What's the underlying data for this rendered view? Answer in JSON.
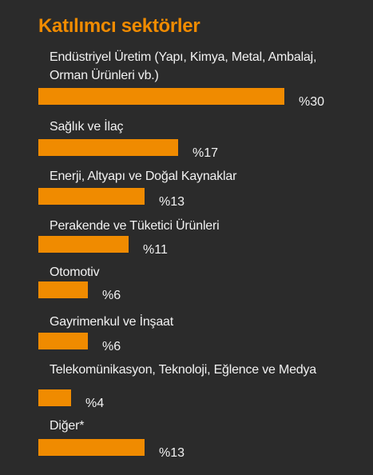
{
  "chart_data": {
    "type": "bar",
    "title": "Katılımcı sektörler",
    "categories": [
      [
        "Endüstriyel Üretim (Yapı, Kimya, Metal, Ambalaj,",
        "Orman Ürünleri vb.)"
      ],
      [
        "Sağlık ve İlaç"
      ],
      [
        "Enerji, Altyapı ve Doğal Kaynaklar"
      ],
      [
        "Perakende ve Tüketici Ürünleri"
      ],
      [
        "Otomotiv"
      ],
      [
        "Gayrimenkul ve İnşaat"
      ],
      [
        "Telekomünikasyon, Teknoloji, Eğlence ve Medya"
      ],
      [
        "Diğer*"
      ]
    ],
    "values": [
      30,
      17,
      13,
      11,
      6,
      6,
      4,
      13
    ],
    "value_labels": [
      "%30",
      "%17",
      "%13",
      "%11",
      "%6",
      "%6",
      "%4",
      "%13"
    ],
    "orientation": "horizontal",
    "grid": false,
    "xlim": [
      0,
      30
    ],
    "colors": {
      "bar": "#f08b00",
      "background": "#2b2b2b",
      "title": "#f08b00",
      "text": "#f2f2f2"
    }
  }
}
